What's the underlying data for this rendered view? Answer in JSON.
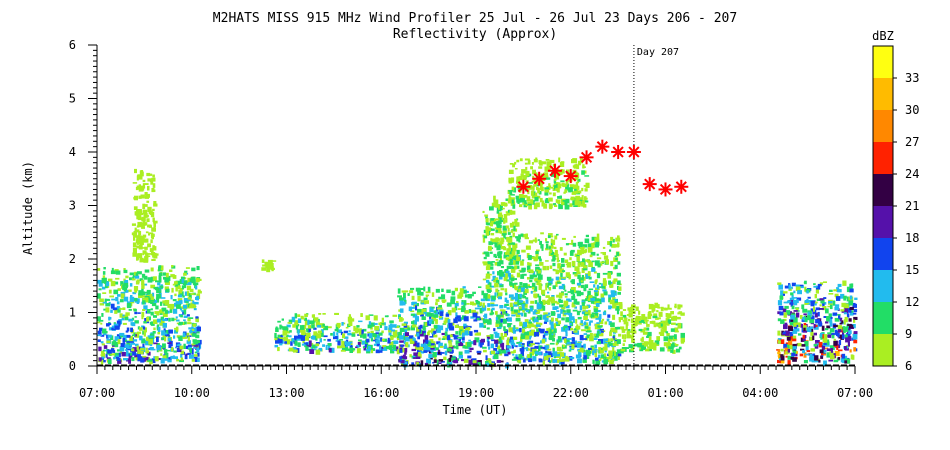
{
  "chart_data": {
    "type": "heatmap",
    "title": "M2HATS MISS 915 MHz Wind Profiler  25 Jul - 26 Jul 23 Days 206 - 207",
    "subtitle": "Reflectivity (Approx)",
    "xlabel": "Time (UT)",
    "ylabel": "Altitude (km)",
    "x_tick_labels": [
      "07:00",
      "10:00",
      "13:00",
      "16:00",
      "19:00",
      "22:00",
      "01:00",
      "04:00",
      "07:00"
    ],
    "x_ticks_hours": [
      0,
      3,
      6,
      9,
      12,
      15,
      18,
      21,
      24
    ],
    "xlim_hours_since_0700": [
      0,
      24
    ],
    "y_tick_labels": [
      "0",
      "1",
      "2",
      "3",
      "4",
      "5",
      "6"
    ],
    "ylim": [
      0,
      6
    ],
    "day_marker": {
      "label": "Day 207",
      "hour": 17
    },
    "colorbar": {
      "label": "dBZ",
      "tick_labels": [
        "6",
        "9",
        "12",
        "15",
        "18",
        "21",
        "24",
        "27",
        "30",
        "33"
      ],
      "range": [
        6,
        36
      ],
      "colors": [
        "#aaee22",
        "#22dd66",
        "#22bbee",
        "#1144ee",
        "#5511aa",
        "#330044",
        "#ff2200",
        "#ff8800",
        "#ffbb00",
        "#ffff11"
      ]
    },
    "marker_series": {
      "symbol": "asterisk",
      "color": "#ff0000",
      "x_hours": [
        13.5,
        14.0,
        14.5,
        15.0,
        15.5,
        16.0,
        16.5,
        17.0,
        17.5,
        18.0,
        18.5
      ],
      "y_km": [
        3.35,
        3.5,
        3.65,
        3.55,
        3.9,
        4.1,
        4.0,
        4.0,
        3.4,
        3.3,
        3.35
      ]
    },
    "reflectivity_regions": [
      {
        "x": [
          0.0,
          3.2
        ],
        "y": [
          0.1,
          1.9
        ],
        "levels": [
          6,
          9,
          12,
          15,
          18
        ]
      },
      {
        "x": [
          1.1,
          1.8
        ],
        "y": [
          2.0,
          3.7
        ],
        "levels": [
          6
        ]
      },
      {
        "x": [
          5.2,
          5.6
        ],
        "y": [
          1.8,
          2.0
        ],
        "levels": [
          6
        ]
      },
      {
        "x": [
          5.6,
          9.5
        ],
        "y": [
          0.3,
          1.0
        ],
        "levels": [
          6,
          9,
          12,
          15,
          18
        ]
      },
      {
        "x": [
          9.5,
          13.0
        ],
        "y": [
          0.05,
          1.5
        ],
        "levels": [
          6,
          9,
          12,
          15,
          18,
          21
        ]
      },
      {
        "x": [
          12.2,
          13.3
        ],
        "y": [
          1.5,
          3.2
        ],
        "levels": [
          6,
          9,
          12
        ]
      },
      {
        "x": [
          13.0,
          15.5
        ],
        "y": [
          3.0,
          3.9
        ],
        "levels": [
          6,
          9
        ]
      },
      {
        "x": [
          13.0,
          16.5
        ],
        "y": [
          0.1,
          2.5
        ],
        "levels": [
          6,
          9,
          12,
          15
        ]
      },
      {
        "x": [
          16.5,
          18.5
        ],
        "y": [
          0.3,
          1.2
        ],
        "levels": [
          6,
          9
        ]
      },
      {
        "x": [
          21.5,
          24.0
        ],
        "y": [
          0.1,
          1.6
        ],
        "levels": [
          6,
          9,
          12,
          15,
          18,
          21,
          24,
          27,
          30
        ]
      }
    ]
  }
}
